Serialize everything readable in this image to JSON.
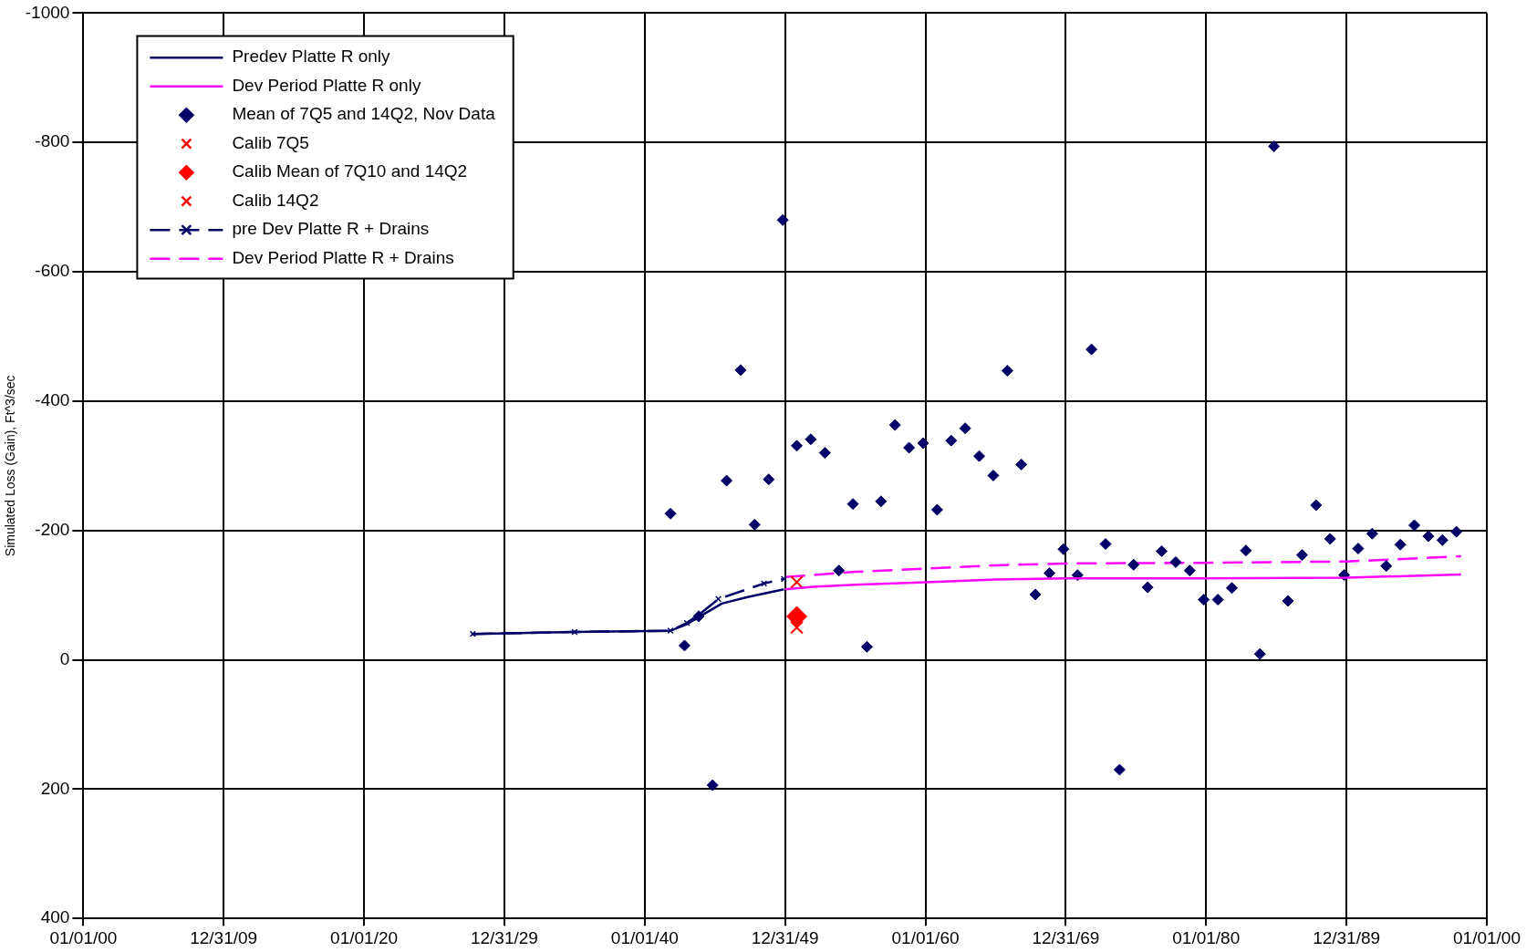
{
  "chart_data": {
    "type": "line",
    "ylabel": "Simulated Loss (Gain), Ft^3/sec",
    "xlim": [
      "1900-01-01",
      "2000-01-01"
    ],
    "xticks": [
      {
        "value": "1900-01-01",
        "label": "01/01/00"
      },
      {
        "value": "1909-12-31",
        "label": "12/31/09"
      },
      {
        "value": "1920-01-01",
        "label": "01/01/20"
      },
      {
        "value": "1929-12-31",
        "label": "12/31/29"
      },
      {
        "value": "1940-01-01",
        "label": "01/01/40"
      },
      {
        "value": "1949-12-31",
        "label": "12/31/49"
      },
      {
        "value": "1960-01-01",
        "label": "01/01/60"
      },
      {
        "value": "1969-12-31",
        "label": "12/31/69"
      },
      {
        "value": "1980-01-01",
        "label": "01/01/80"
      },
      {
        "value": "1989-12-31",
        "label": "12/31/89"
      },
      {
        "value": "2000-01-01",
        "label": "01/01/00"
      }
    ],
    "ylim": [
      400,
      -1000
    ],
    "yticks": [
      -1000,
      -800,
      -600,
      -400,
      -200,
      0,
      200,
      400
    ],
    "grid": true,
    "legend": "top left",
    "series": [
      {
        "name": "Predev Platte R only",
        "color": "#000066",
        "marker": "none",
        "line_style": "solid",
        "x": [
          "1927-10",
          "1935-01",
          "1941-11",
          "1943-01",
          "1944-01",
          "1945-07",
          "1947-05",
          "1949-12"
        ],
        "values": [
          -40,
          -43,
          -45,
          -55,
          -68,
          -87,
          -97,
          -109
        ]
      },
      {
        "name": "Dev Period Platte R only",
        "color": "#ff00ff",
        "marker": "none",
        "line_style": "solid",
        "x": [
          "1950-01",
          "1952-01",
          "1955-01",
          "1960-01",
          "1965-01",
          "1970-01",
          "1980-01",
          "1990-01",
          "1998-03"
        ],
        "values": [
          -109,
          -113,
          -116,
          -120,
          -124,
          -126,
          -126,
          -127,
          -132
        ]
      },
      {
        "name": "Mean of 7Q5 and 14Q2, Nov Data",
        "type": "scatter",
        "color": "#000066",
        "marker": "diamond",
        "x": [
          "1941-11",
          "1942-11",
          "1943-11",
          "1944-11",
          "1945-11",
          "1946-11",
          "1947-11",
          "1948-11",
          "1949-11",
          "1950-11",
          "1951-11",
          "1952-11",
          "1953-11",
          "1954-11",
          "1955-11",
          "1956-11",
          "1957-11",
          "1958-11",
          "1959-11",
          "1960-11",
          "1961-11",
          "1962-11",
          "1963-11",
          "1964-11",
          "1965-11",
          "1966-11",
          "1967-11",
          "1968-11",
          "1969-11",
          "1970-11",
          "1971-11",
          "1972-11",
          "1973-11",
          "1974-11",
          "1975-11",
          "1976-11",
          "1977-11",
          "1978-11",
          "1979-11",
          "1980-11",
          "1981-11",
          "1982-11",
          "1983-11",
          "1984-11",
          "1985-11",
          "1986-11",
          "1987-11",
          "1988-11",
          "1989-11",
          "1990-11",
          "1991-11",
          "1992-11",
          "1993-11",
          "1994-11",
          "1995-11",
          "1996-11",
          "1997-11"
        ],
        "values": [
          -226,
          -22,
          -67,
          194,
          -277,
          -448,
          -209,
          -279,
          -680,
          -331,
          -341,
          -320,
          -138,
          -241,
          -20,
          -245,
          -363,
          -328,
          -335,
          -232,
          -339,
          -358,
          -315,
          -285,
          -447,
          -302,
          -101,
          -134,
          -171,
          -131,
          -480,
          -179,
          170,
          -147,
          -112,
          -168,
          -151,
          -138,
          -93,
          -93,
          -111,
          -169,
          -9,
          -794,
          -91,
          -162,
          -239,
          -187,
          -131,
          -172,
          -195,
          -145,
          -178,
          -208,
          -191,
          -185,
          -198
        ]
      },
      {
        "name": "Calib 7Q5",
        "type": "scatter",
        "color": "#ff0000",
        "marker": "cross",
        "x": [
          "1950-11"
        ],
        "values": [
          -50
        ]
      },
      {
        "name": "Calib Mean of 7Q10 and 14Q2",
        "type": "scatter",
        "color": "#ff0000",
        "marker": "diamond",
        "x": [
          "1950-11"
        ],
        "values": [
          -67
        ]
      },
      {
        "name": "Calib 14Q2",
        "type": "scatter",
        "color": "#ff0000",
        "marker": "cross",
        "x": [
          "1950-11"
        ],
        "values": [
          -120
        ]
      },
      {
        "name": "pre Dev Platte R + Drains",
        "color": "#000066",
        "marker": "cross",
        "line_style": "dashed",
        "x": [
          "1927-10",
          "1935-01",
          "1941-11",
          "1943-01",
          "1944-01",
          "1945-04",
          "1948-07",
          "1949-12"
        ],
        "values": [
          -40,
          -43,
          -45,
          -57,
          -72,
          -94,
          -118,
          -125
        ]
      },
      {
        "name": "Dev Period Platte R + Drains",
        "color": "#ff00ff",
        "marker": "none",
        "line_style": "dashed",
        "x": [
          "1950-01",
          "1955-01",
          "1960-01",
          "1965-01",
          "1970-01",
          "1980-01",
          "1990-01",
          "1996-01",
          "1998-03"
        ],
        "values": [
          -128,
          -136,
          -141,
          -146,
          -149,
          -150,
          -152,
          -158,
          -160
        ]
      }
    ]
  }
}
